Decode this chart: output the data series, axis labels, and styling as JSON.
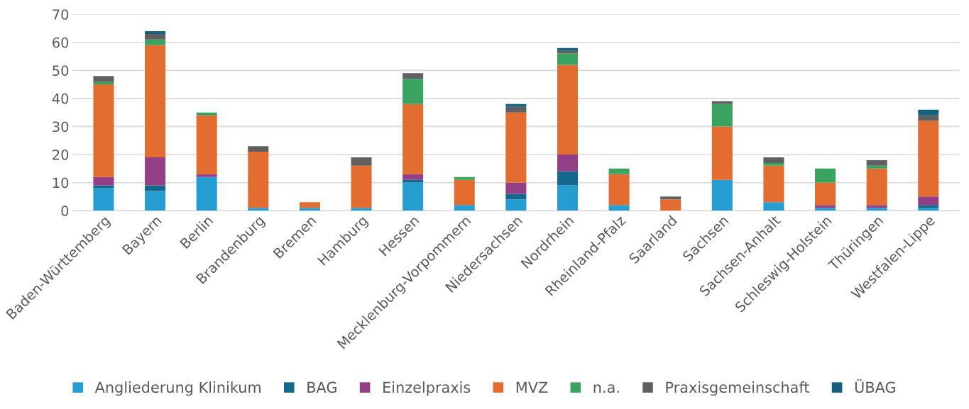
{
  "chart_data": {
    "type": "bar",
    "stacked": true,
    "grid": "y",
    "legend": "bottom",
    "categories": [
      "Baden-Württemberg",
      "Bayern",
      "Berlin",
      "Brandenburg",
      "Bremen",
      "Hamburg",
      "Hessen",
      "Mecklenburg-Vorpommern",
      "Niedersachsen",
      "Nordrhein",
      "Rheinland-Pfalz",
      "Saarland",
      "Sachsen",
      "Sachsen-Anhalt",
      "Schleswig-Holstein",
      "Thüringen",
      "Westfalen-Lippe"
    ],
    "ylim": [
      0,
      70
    ],
    "yticks": [
      0,
      10,
      20,
      30,
      40,
      50,
      60,
      70
    ],
    "series": [
      {
        "name": "Angliederung Klinikum",
        "color": "#259dd0",
        "values": [
          8,
          7,
          12,
          1,
          1,
          1,
          10,
          2,
          4,
          9,
          2,
          0,
          11,
          3,
          1,
          1,
          1
        ]
      },
      {
        "name": "BAG",
        "color": "#13688b",
        "values": [
          1,
          2,
          0,
          0,
          0,
          0,
          1,
          0,
          2,
          5,
          0,
          0,
          0,
          0,
          0,
          0,
          1
        ]
      },
      {
        "name": "Einzelpraxis",
        "color": "#923f86",
        "values": [
          3,
          10,
          1,
          0,
          0,
          0,
          2,
          0,
          4,
          6,
          0,
          0,
          0,
          0,
          1,
          1,
          3
        ]
      },
      {
        "name": "MVZ",
        "color": "#e36c31",
        "values": [
          33,
          40,
          21,
          20,
          2,
          15,
          25,
          9,
          25,
          32,
          11,
          4,
          19,
          13,
          8,
          13,
          27
        ]
      },
      {
        "name": "n.a.",
        "color": "#3ba362",
        "values": [
          1,
          2,
          1,
          0,
          0,
          0,
          9,
          1,
          0,
          4,
          2,
          0,
          8,
          1,
          5,
          1,
          0
        ]
      },
      {
        "name": "Praxisgemeinschaft",
        "color": "#606060",
        "values": [
          2,
          2,
          0,
          2,
          0,
          3,
          2,
          0,
          2,
          1,
          0,
          1,
          1,
          2,
          0,
          2,
          2
        ]
      },
      {
        "name": "ÜBAG",
        "color": "#175f7e",
        "values": [
          0,
          1,
          0,
          0,
          0,
          0,
          0,
          0,
          1,
          1,
          0,
          0,
          0,
          0,
          0,
          0,
          2
        ]
      }
    ]
  }
}
